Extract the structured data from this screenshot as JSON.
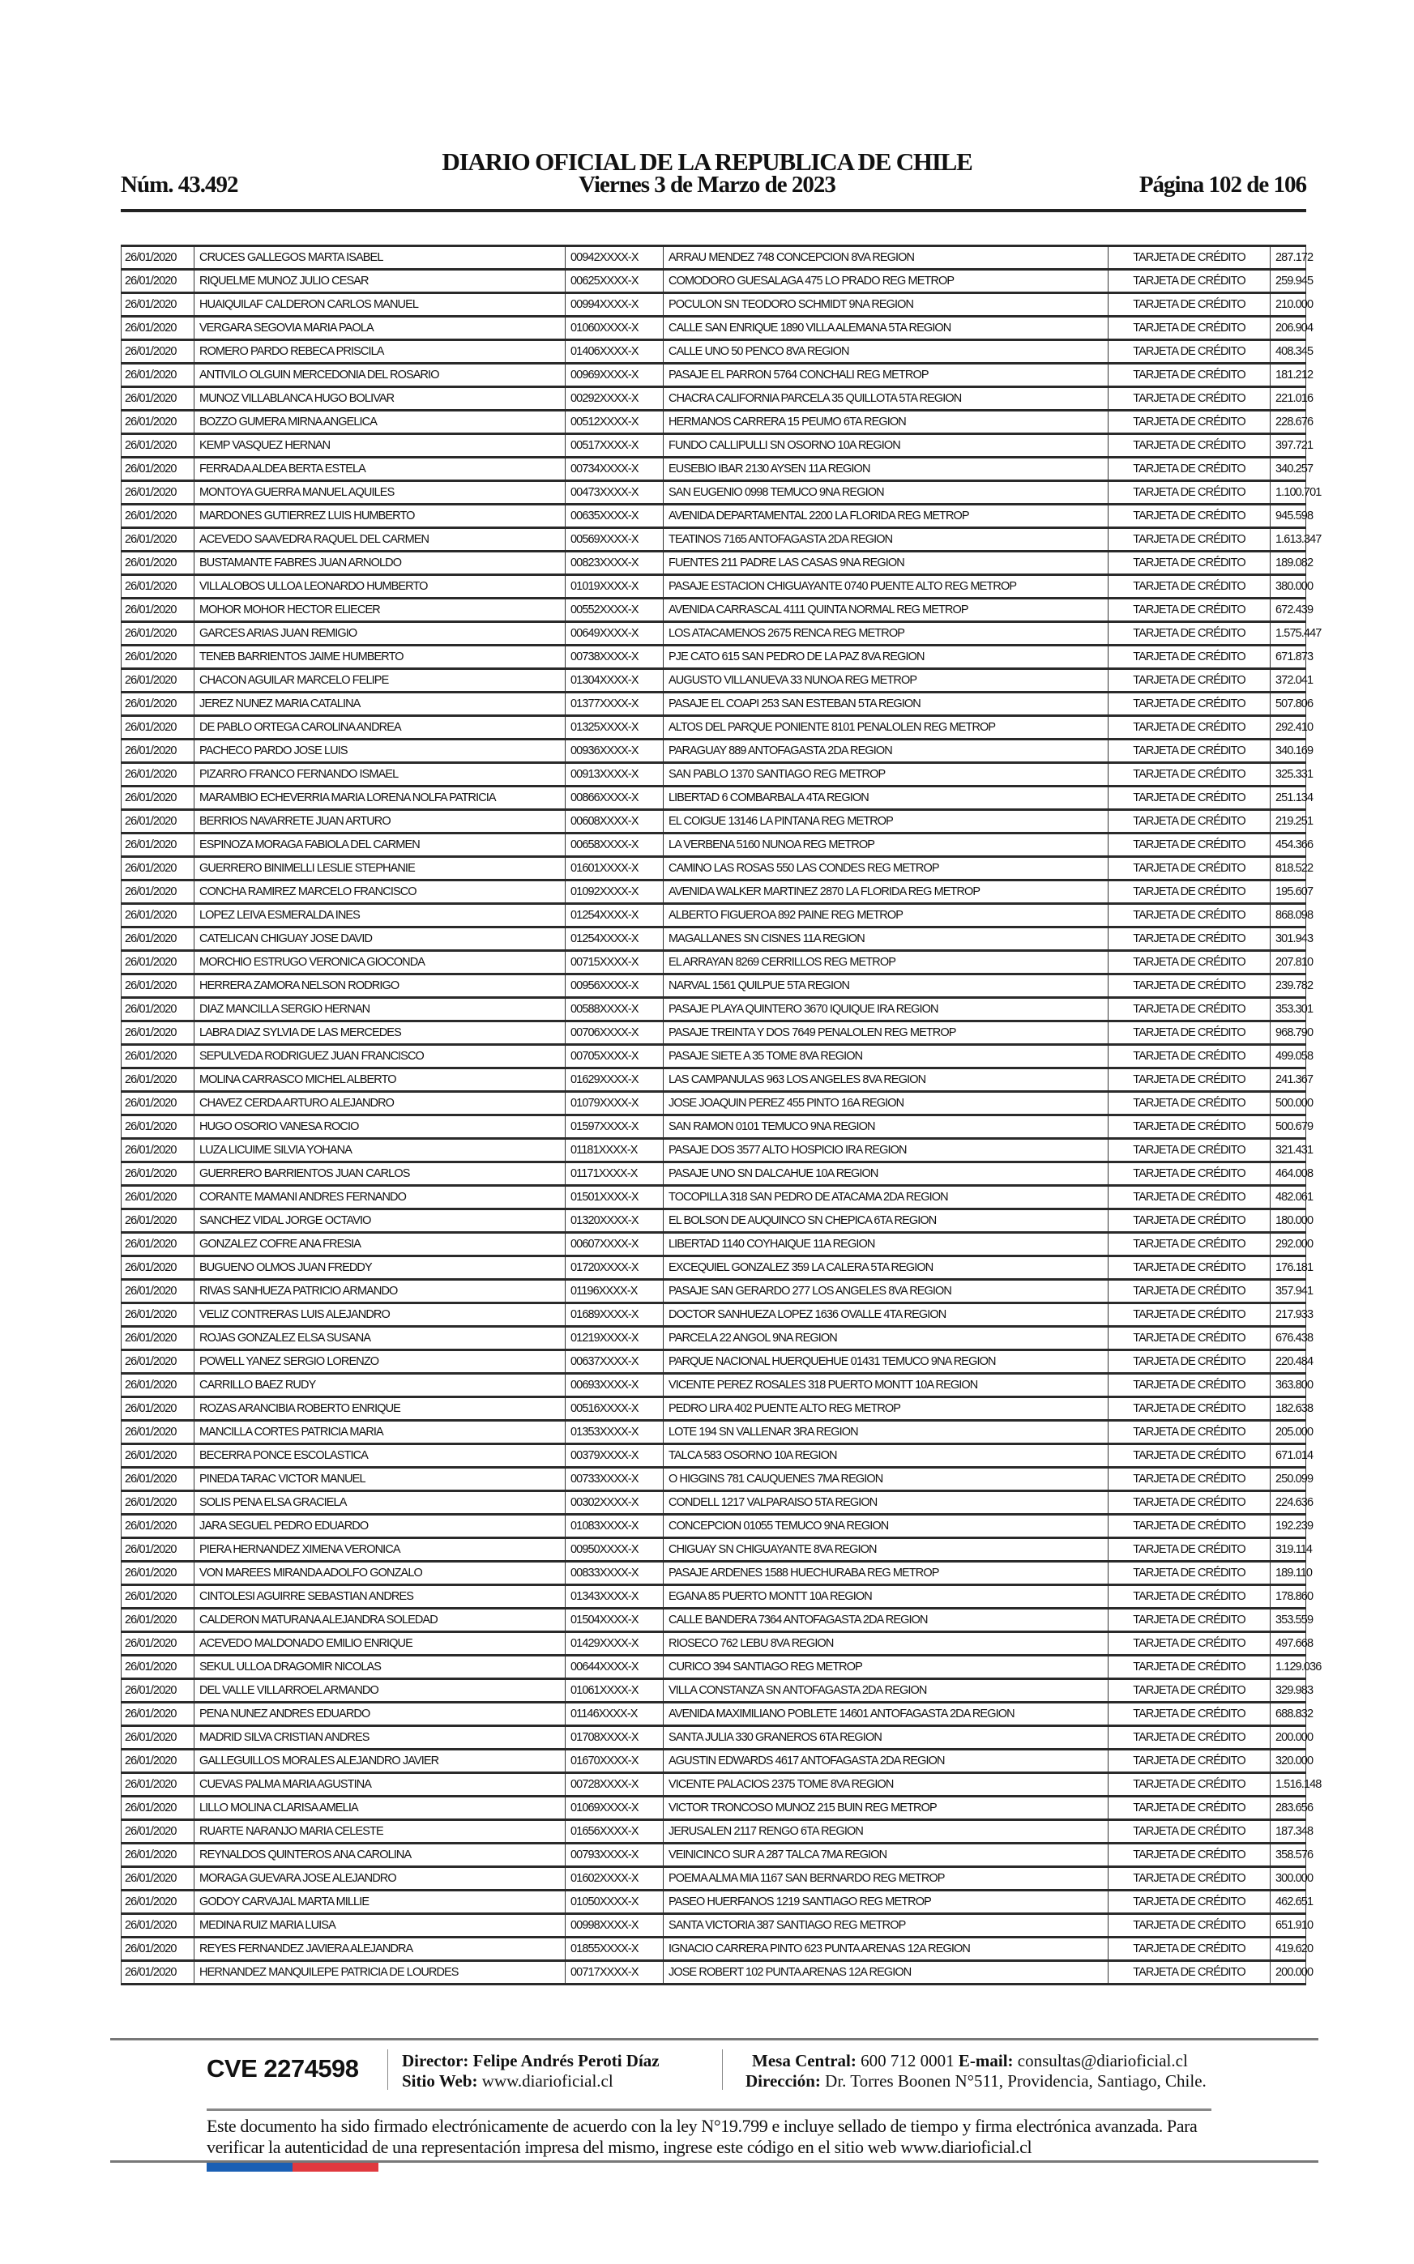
{
  "header": {
    "title": "DIARIO OFICIAL DE LA REPUBLICA DE CHILE",
    "number": "Núm. 43.492",
    "date": "Viernes 3 de Marzo de 2023",
    "page": "Página 102 de 106"
  },
  "table": {
    "rows": [
      [
        "26/01/2020",
        "CRUCES GALLEGOS MARTA ISABEL",
        "00942XXXX-X",
        "ARRAU MENDEZ 748 CONCEPCION 8VA REGION",
        "TARJETA DE CRÉDITO",
        "287.172"
      ],
      [
        "26/01/2020",
        "RIQUELME MUNOZ JULIO CESAR",
        "00625XXXX-X",
        "COMODORO GUESALAGA 475 LO PRADO REG METROP",
        "TARJETA DE CRÉDITO",
        "259.945"
      ],
      [
        "26/01/2020",
        "HUAIQUILAF CALDERON CARLOS MANUEL",
        "00994XXXX-X",
        "POCULON SN TEODORO SCHMIDT 9NA REGION",
        "TARJETA DE CRÉDITO",
        "210.000"
      ],
      [
        "26/01/2020",
        "VERGARA SEGOVIA MARIA PAOLA",
        "01060XXXX-X",
        "CALLE SAN ENRIQUE 1890 VILLA ALEMANA 5TA REGION",
        "TARJETA DE CRÉDITO",
        "206.904"
      ],
      [
        "26/01/2020",
        "ROMERO PARDO REBECA PRISCILA",
        "01406XXXX-X",
        "CALLE UNO 50 PENCO 8VA REGION",
        "TARJETA DE CRÉDITO",
        "408.345"
      ],
      [
        "26/01/2020",
        "ANTIVILO OLGUIN MERCEDONIA DEL ROSARIO",
        "00969XXXX-X",
        "PASAJE EL PARRON 5764 CONCHALI REG METROP",
        "TARJETA DE CRÉDITO",
        "181.212"
      ],
      [
        "26/01/2020",
        "MUNOZ VILLABLANCA HUGO BOLIVAR",
        "00292XXXX-X",
        "CHACRA CALIFORNIA PARCELA 35 QUILLOTA 5TA REGION",
        "TARJETA DE CRÉDITO",
        "221.016"
      ],
      [
        "26/01/2020",
        "BOZZO GUMERA MIRNA ANGELICA",
        "00512XXXX-X",
        "HERMANOS CARRERA 15 PEUMO 6TA REGION",
        "TARJETA DE CRÉDITO",
        "228.676"
      ],
      [
        "26/01/2020",
        "KEMP VASQUEZ HERNAN",
        "00517XXXX-X",
        "FUNDO CALLIPULLI SN OSORNO 10A REGION",
        "TARJETA DE CRÉDITO",
        "397.721"
      ],
      [
        "26/01/2020",
        "FERRADA ALDEA BERTA ESTELA",
        "00734XXXX-X",
        "EUSEBIO IBAR 2130 AYSEN 11A REGION",
        "TARJETA DE CRÉDITO",
        "340.257"
      ],
      [
        "26/01/2020",
        "MONTOYA GUERRA MANUEL AQUILES",
        "00473XXXX-X",
        "SAN EUGENIO 0998 TEMUCO 9NA REGION",
        "TARJETA DE CRÉDITO",
        "1.100.701"
      ],
      [
        "26/01/2020",
        "MARDONES GUTIERREZ LUIS HUMBERTO",
        "00635XXXX-X",
        "AVENIDA DEPARTAMENTAL 2200 LA FLORIDA REG METROP",
        "TARJETA DE CRÉDITO",
        "945.598"
      ],
      [
        "26/01/2020",
        "ACEVEDO SAAVEDRA RAQUEL DEL CARMEN",
        "00569XXXX-X",
        "TEATINOS 7165 ANTOFAGASTA 2DA REGION",
        "TARJETA DE CRÉDITO",
        "1.613.347"
      ],
      [
        "26/01/2020",
        "BUSTAMANTE FABRES JUAN ARNOLDO",
        "00823XXXX-X",
        "FUENTES 211 PADRE LAS CASAS 9NA REGION",
        "TARJETA DE CRÉDITO",
        "189.082"
      ],
      [
        "26/01/2020",
        "VILLALOBOS ULLOA LEONARDO HUMBERTO",
        "01019XXXX-X",
        "PASAJE ESTACION CHIGUAYANTE 0740 PUENTE ALTO REG METROP",
        "TARJETA DE CRÉDITO",
        "380.000"
      ],
      [
        "26/01/2020",
        "MOHOR MOHOR HECTOR ELIECER",
        "00552XXXX-X",
        "AVENIDA CARRASCAL 4111 QUINTA NORMAL REG METROP",
        "TARJETA DE CRÉDITO",
        "672.439"
      ],
      [
        "26/01/2020",
        "GARCES ARIAS JUAN REMIGIO",
        "00649XXXX-X",
        "LOS ATACAMENOS 2675 RENCA REG METROP",
        "TARJETA DE CRÉDITO",
        "1.575.447"
      ],
      [
        "26/01/2020",
        "TENEB BARRIENTOS JAIME HUMBERTO",
        "00738XXXX-X",
        "PJE CATO 615 SAN PEDRO DE LA PAZ 8VA REGION",
        "TARJETA DE CRÉDITO",
        "671.873"
      ],
      [
        "26/01/2020",
        "CHACON AGUILAR MARCELO FELIPE",
        "01304XXXX-X",
        "AUGUSTO VILLANUEVA 33 NUNOA REG METROP",
        "TARJETA DE CRÉDITO",
        "372.041"
      ],
      [
        "26/01/2020",
        "JEREZ NUNEZ MARIA CATALINA",
        "01377XXXX-X",
        "PASAJE EL COAPI 253 SAN ESTEBAN 5TA REGION",
        "TARJETA DE CRÉDITO",
        "507.806"
      ],
      [
        "26/01/2020",
        "DE PABLO ORTEGA CAROLINA ANDREA",
        "01325XXXX-X",
        "ALTOS DEL PARQUE PONIENTE 8101 PENALOLEN REG METROP",
        "TARJETA DE CRÉDITO",
        "292.410"
      ],
      [
        "26/01/2020",
        "PACHECO PARDO JOSE LUIS",
        "00936XXXX-X",
        "PARAGUAY 889 ANTOFAGASTA 2DA REGION",
        "TARJETA DE CRÉDITO",
        "340.169"
      ],
      [
        "26/01/2020",
        "PIZARRO FRANCO FERNANDO ISMAEL",
        "00913XXXX-X",
        "SAN PABLO 1370 SANTIAGO REG METROP",
        "TARJETA DE CRÉDITO",
        "325.331"
      ],
      [
        "26/01/2020",
        "MARAMBIO ECHEVERRIA MARIA LORENA NOLFA PATRICIA",
        "00866XXXX-X",
        "LIBERTAD 6 COMBARBALA 4TA REGION",
        "TARJETA DE CRÉDITO",
        "251.134"
      ],
      [
        "26/01/2020",
        "BERRIOS NAVARRETE JUAN ARTURO",
        "00608XXXX-X",
        "EL COIGUE 13146 LA PINTANA REG METROP",
        "TARJETA DE CRÉDITO",
        "219.251"
      ],
      [
        "26/01/2020",
        "ESPINOZA MORAGA FABIOLA DEL CARMEN",
        "00658XXXX-X",
        "LA VERBENA 5160 NUNOA REG METROP",
        "TARJETA DE CRÉDITO",
        "454.366"
      ],
      [
        "26/01/2020",
        "GUERRERO BINIMELLI LESLIE STEPHANIE",
        "01601XXXX-X",
        "CAMINO LAS ROSAS 550 LAS CONDES REG METROP",
        "TARJETA DE CRÉDITO",
        "818.522"
      ],
      [
        "26/01/2020",
        "CONCHA RAMIREZ MARCELO FRANCISCO",
        "01092XXXX-X",
        "AVENIDA WALKER MARTINEZ 2870 LA FLORIDA REG METROP",
        "TARJETA DE CRÉDITO",
        "195.607"
      ],
      [
        "26/01/2020",
        "LOPEZ LEIVA ESMERALDA INES",
        "01254XXXX-X",
        "ALBERTO FIGUEROA 892 PAINE REG METROP",
        "TARJETA DE CRÉDITO",
        "868.098"
      ],
      [
        "26/01/2020",
        "CATELICAN CHIGUAY JOSE DAVID",
        "01254XXXX-X",
        "MAGALLANES SN CISNES 11A REGION",
        "TARJETA DE CRÉDITO",
        "301.943"
      ],
      [
        "26/01/2020",
        "MORCHIO ESTRUGO VERONICA GIOCONDA",
        "00715XXXX-X",
        "EL ARRAYAN 8269 CERRILLOS REG METROP",
        "TARJETA DE CRÉDITO",
        "207.810"
      ],
      [
        "26/01/2020",
        "HERRERA ZAMORA NELSON RODRIGO",
        "00956XXXX-X",
        "NARVAL 1561 QUILPUE 5TA REGION",
        "TARJETA DE CRÉDITO",
        "239.782"
      ],
      [
        "26/01/2020",
        "DIAZ MANCILLA SERGIO HERNAN",
        "00588XXXX-X",
        "PASAJE PLAYA QUINTERO 3670 IQUIQUE IRA REGION",
        "TARJETA DE CRÉDITO",
        "353.301"
      ],
      [
        "26/01/2020",
        "LABRA DIAZ SYLVIA DE LAS MERCEDES",
        "00706XXXX-X",
        "PASAJE TREINTA Y DOS 7649 PENALOLEN REG METROP",
        "TARJETA DE CRÉDITO",
        "968.790"
      ],
      [
        "26/01/2020",
        "SEPULVEDA RODRIGUEZ JUAN FRANCISCO",
        "00705XXXX-X",
        "PASAJE SIETE A 35 TOME 8VA REGION",
        "TARJETA DE CRÉDITO",
        "499.058"
      ],
      [
        "26/01/2020",
        "MOLINA CARRASCO MICHEL ALBERTO",
        "01629XXXX-X",
        "LAS CAMPANULAS 963 LOS ANGELES 8VA REGION",
        "TARJETA DE CRÉDITO",
        "241.367"
      ],
      [
        "26/01/2020",
        "CHAVEZ CERDA ARTURO ALEJANDRO",
        "01079XXXX-X",
        "JOSE JOAQUIN PEREZ 455 PINTO 16A REGION",
        "TARJETA DE CRÉDITO",
        "500.000"
      ],
      [
        "26/01/2020",
        "HUGO OSORIO VANESA ROCIO",
        "01597XXXX-X",
        "SAN RAMON 0101 TEMUCO 9NA REGION",
        "TARJETA DE CRÉDITO",
        "500.679"
      ],
      [
        "26/01/2020",
        "LUZA LICUIME SILVIA YOHANA",
        "01181XXXX-X",
        "PASAJE DOS 3577 ALTO HOSPICIO IRA REGION",
        "TARJETA DE CRÉDITO",
        "321.431"
      ],
      [
        "26/01/2020",
        "GUERRERO BARRIENTOS JUAN CARLOS",
        "01171XXXX-X",
        "PASAJE UNO SN DALCAHUE 10A REGION",
        "TARJETA DE CRÉDITO",
        "464.008"
      ],
      [
        "26/01/2020",
        "CORANTE MAMANI ANDRES FERNANDO",
        "01501XXXX-X",
        "TOCOPILLA 318 SAN PEDRO DE ATACAMA 2DA REGION",
        "TARJETA DE CRÉDITO",
        "482.061"
      ],
      [
        "26/01/2020",
        "SANCHEZ VIDAL JORGE OCTAVIO",
        "01320XXXX-X",
        "EL BOLSON DE AUQUINCO SN CHEPICA 6TA REGION",
        "TARJETA DE CRÉDITO",
        "180.000"
      ],
      [
        "26/01/2020",
        "GONZALEZ COFRE ANA FRESIA",
        "00607XXXX-X",
        "LIBERTAD 1140 COYHAIQUE 11A REGION",
        "TARJETA DE CRÉDITO",
        "292.000"
      ],
      [
        "26/01/2020",
        "BUGUENO OLMOS JUAN FREDDY",
        "01720XXXX-X",
        "EXCEQUIEL GONZALEZ 359 LA CALERA 5TA REGION",
        "TARJETA DE CRÉDITO",
        "176.181"
      ],
      [
        "26/01/2020",
        "RIVAS SANHUEZA PATRICIO ARMANDO",
        "01196XXXX-X",
        "PASAJE SAN GERARDO 277 LOS ANGELES 8VA REGION",
        "TARJETA DE CRÉDITO",
        "357.941"
      ],
      [
        "26/01/2020",
        "VELIZ CONTRERAS LUIS ALEJANDRO",
        "01689XXXX-X",
        "DOCTOR SANHUEZA LOPEZ 1636 OVALLE 4TA REGION",
        "TARJETA DE CRÉDITO",
        "217.933"
      ],
      [
        "26/01/2020",
        "ROJAS GONZALEZ ELSA SUSANA",
        "01219XXXX-X",
        "PARCELA 22 ANGOL 9NA REGION",
        "TARJETA DE CRÉDITO",
        "676.438"
      ],
      [
        "26/01/2020",
        "POWELL YANEZ SERGIO LORENZO",
        "00637XXXX-X",
        "PARQUE NACIONAL HUERQUEHUE 01431 TEMUCO 9NA REGION",
        "TARJETA DE CRÉDITO",
        "220.484"
      ],
      [
        "26/01/2020",
        "CARRILLO BAEZ RUDY",
        "00693XXXX-X",
        "VICENTE PEREZ ROSALES 318 PUERTO MONTT 10A REGION",
        "TARJETA DE CRÉDITO",
        "363.800"
      ],
      [
        "26/01/2020",
        "ROZAS ARANCIBIA ROBERTO ENRIQUE",
        "00516XXXX-X",
        "PEDRO LIRA 402 PUENTE ALTO REG METROP",
        "TARJETA DE CRÉDITO",
        "182.638"
      ],
      [
        "26/01/2020",
        "MANCILLA CORTES PATRICIA MARIA",
        "01353XXXX-X",
        "LOTE 194 SN VALLENAR 3RA REGION",
        "TARJETA DE CRÉDITO",
        "205.000"
      ],
      [
        "26/01/2020",
        "BECERRA PONCE ESCOLASTICA",
        "00379XXXX-X",
        "TALCA 583 OSORNO 10A REGION",
        "TARJETA DE CRÉDITO",
        "671.014"
      ],
      [
        "26/01/2020",
        "PINEDA TARAC VICTOR MANUEL",
        "00733XXXX-X",
        "O HIGGINS 781 CAUQUENES 7MA REGION",
        "TARJETA DE CRÉDITO",
        "250.099"
      ],
      [
        "26/01/2020",
        "SOLIS PENA ELSA GRACIELA",
        "00302XXXX-X",
        "CONDELL 1217 VALPARAISO 5TA REGION",
        "TARJETA DE CRÉDITO",
        "224.636"
      ],
      [
        "26/01/2020",
        "JARA SEGUEL PEDRO EDUARDO",
        "01083XXXX-X",
        "CONCEPCION 01055 TEMUCO 9NA REGION",
        "TARJETA DE CRÉDITO",
        "192.239"
      ],
      [
        "26/01/2020",
        "PIERA HERNANDEZ XIMENA VERONICA",
        "00950XXXX-X",
        "CHIGUAY SN CHIGUAYANTE 8VA REGION",
        "TARJETA DE CRÉDITO",
        "319.114"
      ],
      [
        "26/01/2020",
        "VON MAREES MIRANDA ADOLFO GONZALO",
        "00833XXXX-X",
        "PASAJE ARDENES 1588 HUECHURABA REG METROP",
        "TARJETA DE CRÉDITO",
        "189.110"
      ],
      [
        "26/01/2020",
        "CINTOLESI AGUIRRE SEBASTIAN ANDRES",
        "01343XXXX-X",
        "EGANA 85 PUERTO MONTT 10A REGION",
        "TARJETA DE CRÉDITO",
        "178.860"
      ],
      [
        "26/01/2020",
        "CALDERON MATURANA ALEJANDRA SOLEDAD",
        "01504XXXX-X",
        "CALLE BANDERA 7364 ANTOFAGASTA 2DA REGION",
        "TARJETA DE CRÉDITO",
        "353.559"
      ],
      [
        "26/01/2020",
        "ACEVEDO MALDONADO EMILIO ENRIQUE",
        "01429XXXX-X",
        "RIOSECO 762 LEBU 8VA REGION",
        "TARJETA DE CRÉDITO",
        "497.668"
      ],
      [
        "26/01/2020",
        "SEKUL ULLOA DRAGOMIR NICOLAS",
        "00644XXXX-X",
        "CURICO 394 SANTIAGO REG METROP",
        "TARJETA DE CRÉDITO",
        "1.129.036"
      ],
      [
        "26/01/2020",
        "DEL VALLE VILLARROEL ARMANDO",
        "01061XXXX-X",
        "VILLA CONSTANZA SN ANTOFAGASTA 2DA REGION",
        "TARJETA DE CRÉDITO",
        "329.983"
      ],
      [
        "26/01/2020",
        "PENA NUNEZ ANDRES EDUARDO",
        "01146XXXX-X",
        "AVENIDA MAXIMILIANO POBLETE 14601 ANTOFAGASTA 2DA REGION",
        "TARJETA DE CRÉDITO",
        "688.832"
      ],
      [
        "26/01/2020",
        "MADRID SILVA CRISTIAN ANDRES",
        "01708XXXX-X",
        "SANTA JULIA 330 GRANEROS 6TA REGION",
        "TARJETA DE CRÉDITO",
        "200.000"
      ],
      [
        "26/01/2020",
        "GALLEGUILLOS MORALES ALEJANDRO JAVIER",
        "01670XXXX-X",
        "AGUSTIN EDWARDS 4617 ANTOFAGASTA 2DA REGION",
        "TARJETA DE CRÉDITO",
        "320.000"
      ],
      [
        "26/01/2020",
        "CUEVAS PALMA MARIA AGUSTINA",
        "00728XXXX-X",
        "VICENTE PALACIOS 2375 TOME 8VA REGION",
        "TARJETA DE CRÉDITO",
        "1.516.148"
      ],
      [
        "26/01/2020",
        "LILLO MOLINA CLARISA AMELIA",
        "01069XXXX-X",
        "VICTOR TRONCOSO MUNOZ 215 BUIN REG METROP",
        "TARJETA DE CRÉDITO",
        "283.656"
      ],
      [
        "26/01/2020",
        "RUARTE NARANJO MARIA CELESTE",
        "01656XXXX-X",
        "JERUSALEN 2117 RENGO 6TA REGION",
        "TARJETA DE CRÉDITO",
        "187.348"
      ],
      [
        "26/01/2020",
        "REYNALDOS QUINTEROS ANA CAROLINA",
        "00793XXXX-X",
        "VEINICINCO SUR A 287 TALCA 7MA REGION",
        "TARJETA DE CRÉDITO",
        "358.576"
      ],
      [
        "26/01/2020",
        "MORAGA GUEVARA JOSE ALEJANDRO",
        "01602XXXX-X",
        "POEMA ALMA MIA 1167 SAN BERNARDO REG METROP",
        "TARJETA DE CRÉDITO",
        "300.000"
      ],
      [
        "26/01/2020",
        "GODOY CARVAJAL MARTA MILLIE",
        "01050XXXX-X",
        "PASEO HUERFANOS 1219 SANTIAGO REG METROP",
        "TARJETA DE CRÉDITO",
        "462.651"
      ],
      [
        "26/01/2020",
        "MEDINA RUIZ MARIA LUISA",
        "00998XXXX-X",
        "SANTA VICTORIA 387 SANTIAGO REG METROP",
        "TARJETA DE CRÉDITO",
        "651.910"
      ],
      [
        "26/01/2020",
        "REYES FERNANDEZ JAVIERA ALEJANDRA",
        "01855XXXX-X",
        "IGNACIO CARRERA PINTO 623 PUNTA ARENAS 12A REGION",
        "TARJETA DE CRÉDITO",
        "419.620"
      ],
      [
        "26/01/2020",
        "HERNANDEZ MANQUILEPE PATRICIA DE LOURDES",
        "00717XXXX-X",
        "JOSE ROBERT 102 PUNTA ARENAS 12A REGION",
        "TARJETA DE CRÉDITO",
        "200.000"
      ]
    ]
  },
  "footer": {
    "cve": "CVE 2274598",
    "director_label": "Director:",
    "director_name": "Felipe Andrés Peroti Díaz",
    "website_label": "Sitio Web:",
    "website": "www.diarioficial.cl",
    "phone_label": "Mesa Central:",
    "phone": "600 712 0001",
    "email_label": "E-mail:",
    "email": "consultas@diarioficial.cl",
    "address_label": "Dirección:",
    "address": "Dr. Torres Boonen N°511, Providencia, Santiago, Chile.",
    "legal_text": "Este documento ha sido firmado electrónicamente de acuerdo con la ley N°19.799 e incluye sellado de tiempo y firma electrónica avanzada. Para verificar la autenticidad de una representación impresa del mismo, ingrese este código en el sitio web www.diarioficial.cl",
    "flag_colors": [
      "#1a5fb4",
      "#e0393e"
    ]
  }
}
